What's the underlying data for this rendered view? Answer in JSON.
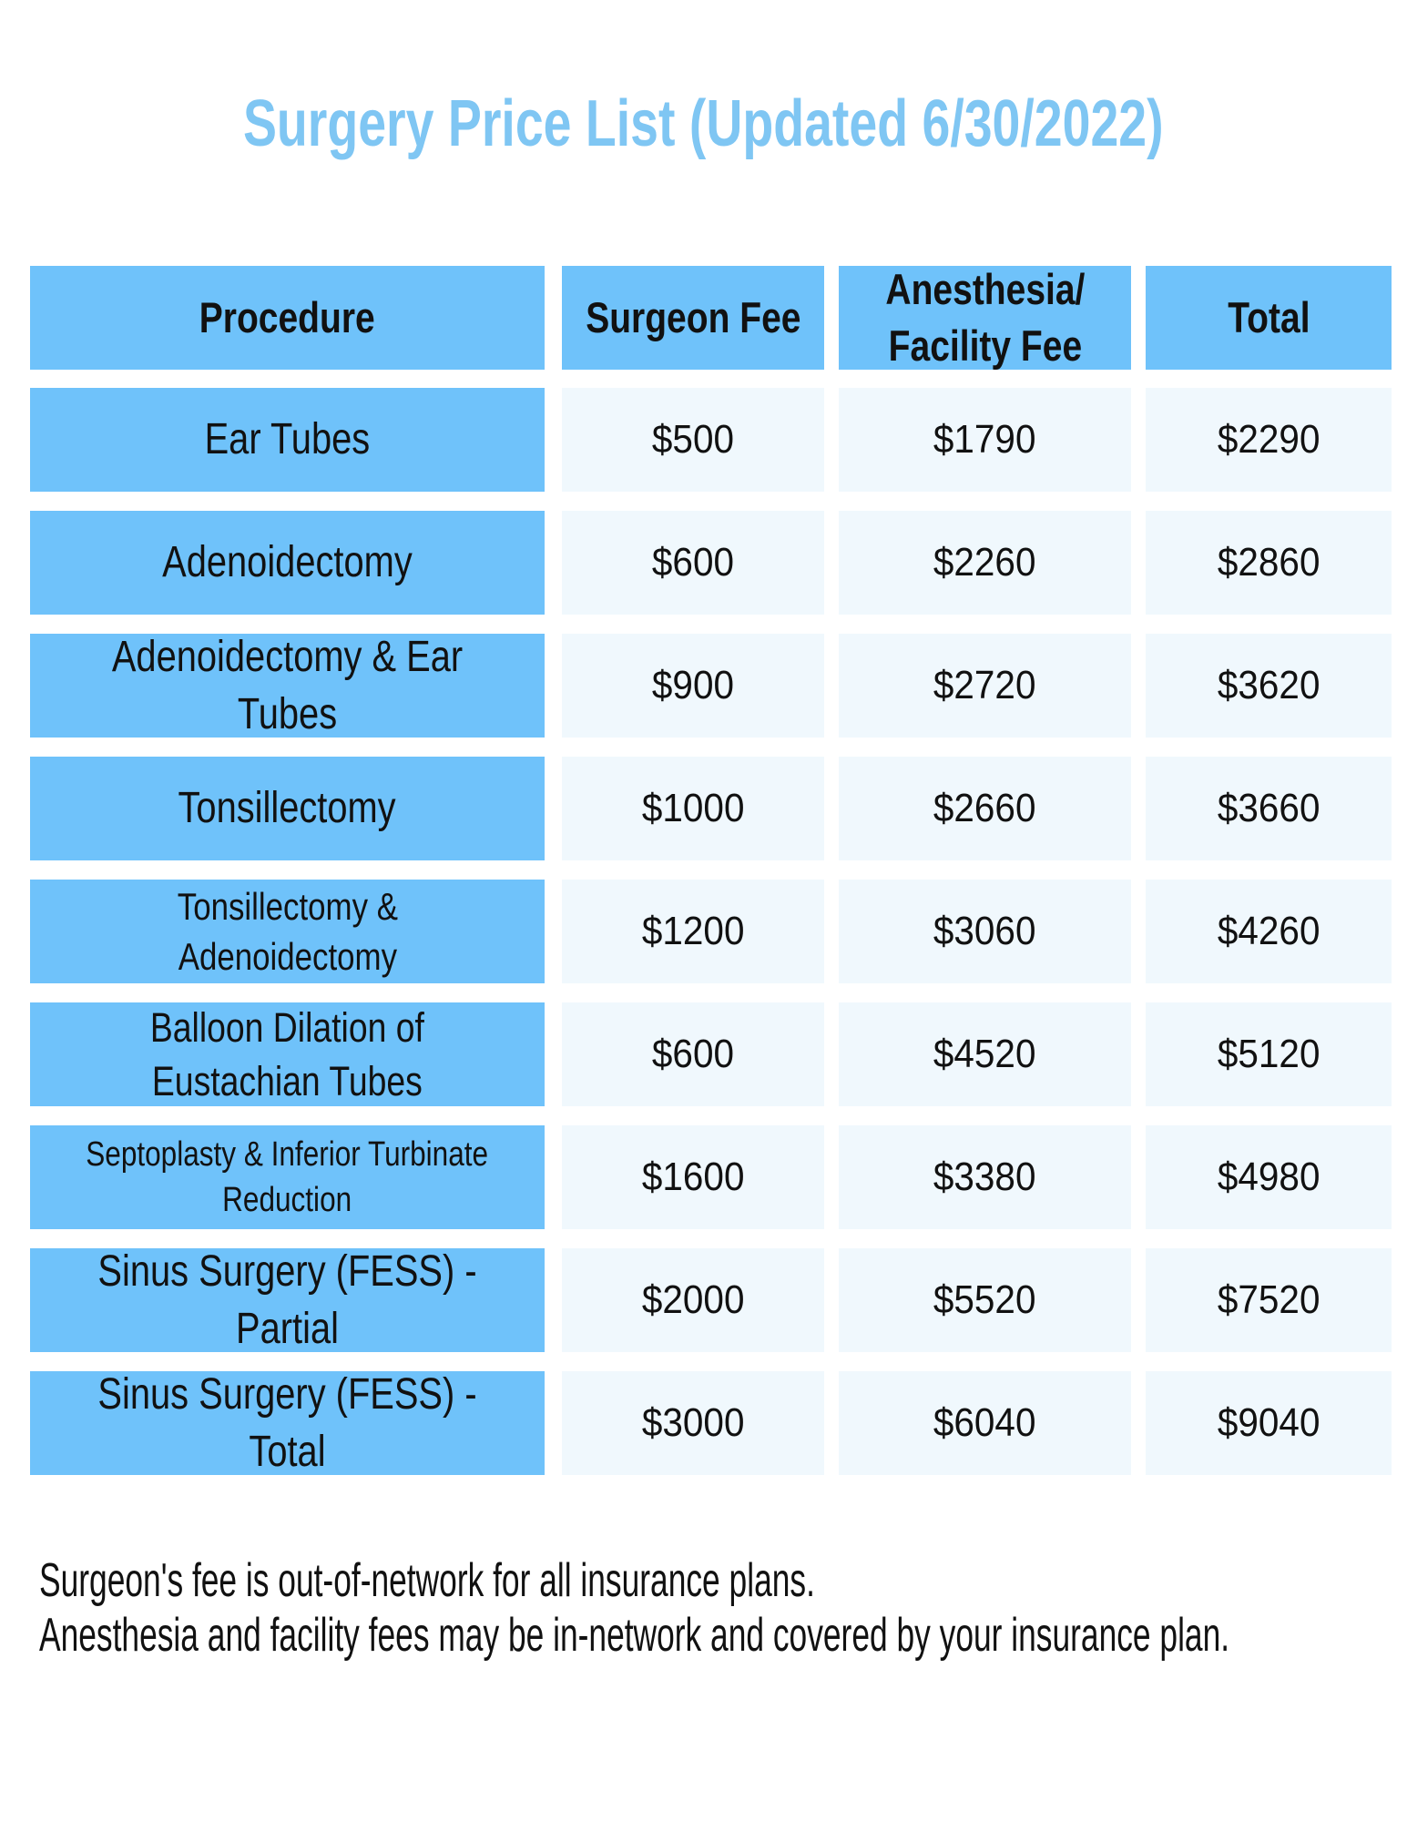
{
  "title": "Surgery Price List (Updated 6/30/2022)",
  "table": {
    "headers": [
      "Procedure",
      "Surgeon Fee",
      "Anesthesia/\nFacility Fee",
      "Total"
    ],
    "rows": [
      {
        "procedure": "Ear Tubes",
        "surgeon_fee": "$500",
        "anesthesia_facility_fee": "$1790",
        "total": "$2290"
      },
      {
        "procedure": "Adenoidectomy",
        "surgeon_fee": "$600",
        "anesthesia_facility_fee": "$2260",
        "total": "$2860"
      },
      {
        "procedure": "Adenoidectomy & Ear Tubes",
        "surgeon_fee": "$900",
        "anesthesia_facility_fee": "$2720",
        "total": "$3620"
      },
      {
        "procedure": "Tonsillectomy",
        "surgeon_fee": "$1000",
        "anesthesia_facility_fee": "$2660",
        "total": "$3660"
      },
      {
        "procedure": "Tonsillectomy &\nAdenoidectomy",
        "surgeon_fee": "$1200",
        "anesthesia_facility_fee": "$3060",
        "total": "$4260"
      },
      {
        "procedure": "Balloon Dilation of\nEustachian Tubes",
        "surgeon_fee": "$600",
        "anesthesia_facility_fee": "$4520",
        "total": "$5120"
      },
      {
        "procedure": "Septoplasty & Inferior Turbinate\nReduction",
        "surgeon_fee": "$1600",
        "anesthesia_facility_fee": "$3380",
        "total": "$4980"
      },
      {
        "procedure": "Sinus Surgery (FESS) - Partial",
        "surgeon_fee": "$2000",
        "anesthesia_facility_fee": "$5520",
        "total": "$7520"
      },
      {
        "procedure": "Sinus Surgery (FESS) - Total",
        "surgeon_fee": "$3000",
        "anesthesia_facility_fee": "$6040",
        "total": "$9040"
      }
    ]
  },
  "footnotes": [
    "Surgeon's fee is out-of-network for all insurance plans.",
    "Anesthesia and facility fees may be in-network and covered by your insurance plan."
  ],
  "colors": {
    "cell_blue": "#6FC2FA",
    "title_blue": "#7FC6F3",
    "fee_cell_light": "#F0F8FD",
    "text": "#111111",
    "background": "#FFFFFF"
  }
}
